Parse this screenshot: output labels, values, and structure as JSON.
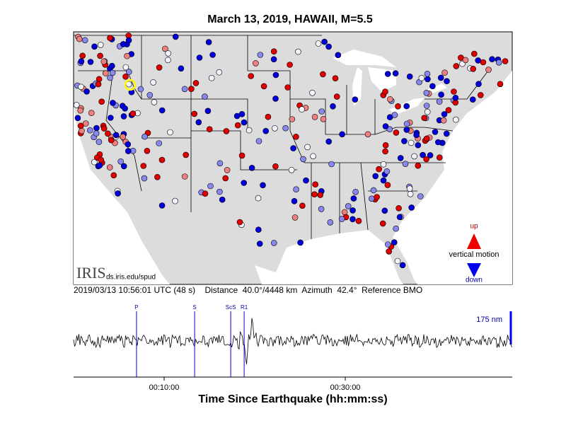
{
  "title": "March 13, 2019, HAWAII, M=5.5",
  "logo": {
    "name": "IRIS",
    "url": "ds.iris.edu/spud"
  },
  "legend": {
    "up": "up",
    "label": "vertical motion",
    "down": "down"
  },
  "info": "2019/03/13 10:56:01 UTC (48 s)    Distance  40.0°/4448 km  Azimuth  42.4°  Reference BMO",
  "seismogram": {
    "xlim": [
      0,
      2906
    ],
    "xticks": [
      {
        "value": 600,
        "label": "00:10:00"
      },
      {
        "value": 1800,
        "label": "00:30:00"
      }
    ],
    "phases": [
      {
        "label": "P",
        "time": 417
      },
      {
        "label": "S",
        "time": 802
      },
      {
        "label": "ScS",
        "time": 1041
      },
      {
        "label": "R1",
        "time": 1130
      }
    ],
    "scale": "175 nm",
    "xlabel": "Time Since Earthquake (hh:mm:ss)"
  }
}
